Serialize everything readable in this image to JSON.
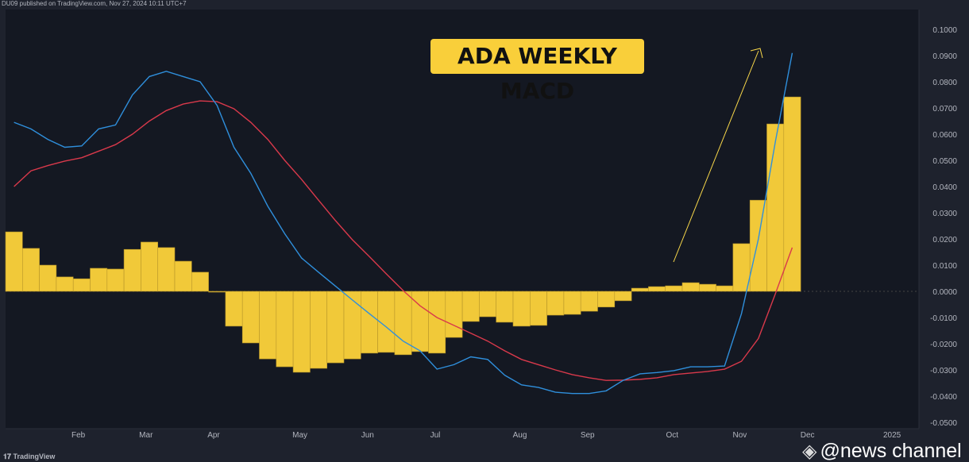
{
  "header": {
    "published": "DU09 published on TradingView.com, Nov 27, 2024 10:11 UTC+7"
  },
  "footer": {
    "brand": "TradingView"
  },
  "watermark": {
    "text": "@news channel",
    "icon": "binance-logo-icon"
  },
  "annotation": {
    "title": "ADA WEEKLY MACD",
    "arrow": "up-trend-arrow",
    "arrow_color": "#f9d84a"
  },
  "chart_data": {
    "type": "bar",
    "title": "ADA WEEKLY MACD",
    "ylim": [
      -0.055,
      0.105
    ],
    "yticks": [
      "0.1000",
      "0.0900",
      "0.0800",
      "0.0700",
      "0.0600",
      "0.0500",
      "0.0400",
      "0.0300",
      "0.0200",
      "0.0100",
      "0.0000",
      "-0.0100",
      "-0.0200",
      "-0.0300",
      "-0.0400",
      "-0.0500"
    ],
    "ytick_values": [
      0.1,
      0.09,
      0.08,
      0.07,
      0.06,
      0.05,
      0.04,
      0.03,
      0.02,
      0.01,
      0,
      -0.01,
      -0.02,
      -0.03,
      -0.04,
      -0.05
    ],
    "xticks": [
      {
        "label": "Feb",
        "week": 4.3
      },
      {
        "label": "Mar",
        "week": 8.3
      },
      {
        "label": "Apr",
        "week": 12.3
      },
      {
        "label": "May",
        "week": 17.4
      },
      {
        "label": "Jun",
        "week": 21.4
      },
      {
        "label": "Jul",
        "week": 25.4
      },
      {
        "label": "Aug",
        "week": 30.4
      },
      {
        "label": "Sep",
        "week": 34.4
      },
      {
        "label": "Oct",
        "week": 39.4
      },
      {
        "label": "Nov",
        "week": 43.4
      },
      {
        "label": "Dec",
        "week": 47.4
      },
      {
        "label": "2025",
        "week": 52.4
      }
    ],
    "grid": false,
    "colors": {
      "histogram": "#f9cf3a",
      "macd": "#2f8fdc",
      "signal": "#d9394b",
      "background": "#141822"
    },
    "series": [
      {
        "type": "histogram",
        "values": [
          0.0227,
          0.0164,
          0.01,
          0.0055,
          0.0048,
          0.0088,
          0.0085,
          0.016,
          0.0188,
          0.0167,
          0.0115,
          0.0073,
          -0.0002,
          -0.0133,
          -0.0197,
          -0.0258,
          -0.0288,
          -0.0309,
          -0.0294,
          -0.0273,
          -0.0258,
          -0.0236,
          -0.0233,
          -0.0242,
          -0.023,
          -0.0236,
          -0.0176,
          -0.0115,
          -0.0097,
          -0.0118,
          -0.0133,
          -0.013,
          -0.0091,
          -0.0088,
          -0.0076,
          -0.006,
          -0.0036,
          0.0012,
          0.0018,
          0.0021,
          0.0033,
          0.0027,
          0.0021,
          0.0182,
          0.0348,
          0.0639,
          0.0742
        ]
      },
      {
        "type": "line",
        "values": [
          0.0645,
          0.062,
          0.058,
          0.055,
          0.0555,
          0.062,
          0.0635,
          0.075,
          0.082,
          0.084,
          0.082,
          0.08,
          0.071,
          0.055,
          0.045,
          0.0325,
          0.022,
          0.0127,
          0.0073,
          0.002,
          -0.0033,
          -0.0085,
          -0.0136,
          -0.019,
          -0.0227,
          -0.0297,
          -0.028,
          -0.025,
          -0.026,
          -0.032,
          -0.0357,
          -0.0367,
          -0.0385,
          -0.039,
          -0.039,
          -0.038,
          -0.034,
          -0.0315,
          -0.031,
          -0.0303,
          -0.0288,
          -0.0288,
          -0.0285,
          -0.0085,
          0.02,
          0.057,
          0.091
        ]
      },
      {
        "type": "line",
        "values": [
          0.04,
          0.046,
          0.048,
          0.0497,
          0.051,
          0.0535,
          0.056,
          0.06,
          0.065,
          0.069,
          0.0715,
          0.0727,
          0.0724,
          0.0697,
          0.0645,
          0.058,
          0.05,
          0.0427,
          0.0348,
          0.027,
          0.0197,
          0.0133,
          0.0067,
          0.0003,
          -0.0055,
          -0.01,
          -0.013,
          -0.016,
          -0.019,
          -0.0227,
          -0.026,
          -0.028,
          -0.03,
          -0.0318,
          -0.033,
          -0.034,
          -0.0339,
          -0.0336,
          -0.033,
          -0.0318,
          -0.0312,
          -0.0306,
          -0.0297,
          -0.0267,
          -0.018,
          -0.001,
          0.0167
        ]
      }
    ]
  }
}
